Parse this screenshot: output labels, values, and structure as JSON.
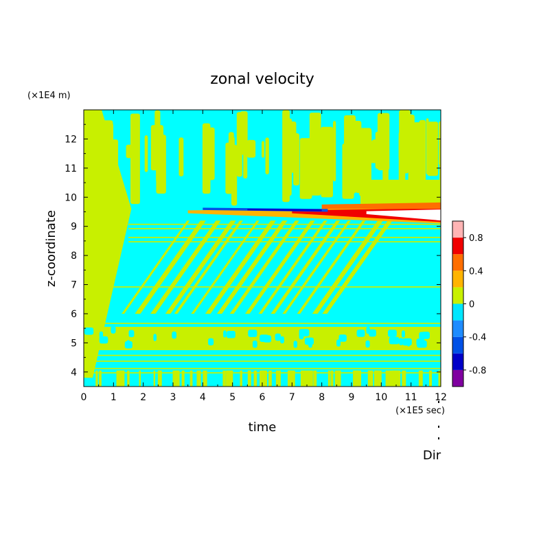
{
  "chart_data": {
    "type": "heatmap",
    "title": "zonal velocity",
    "xlabel": "time",
    "ylabel": "z-coordinate",
    "x_unit_label": "(×1E5 sec)",
    "y_unit_label": "(×1E4 m)",
    "footer_label": "Dir",
    "xlim": [
      0,
      12
    ],
    "ylim": [
      3.5,
      13
    ],
    "x_ticks": [
      0,
      1,
      2,
      3,
      4,
      5,
      6,
      7,
      8,
      9,
      10,
      11,
      12
    ],
    "y_ticks": [
      4,
      5,
      6,
      7,
      8,
      9,
      10,
      11,
      12
    ],
    "colorbar": {
      "levels": [
        -1.0,
        -0.8,
        -0.6,
        -0.4,
        -0.2,
        0,
        0.2,
        0.4,
        0.6,
        0.8,
        1.0
      ],
      "colors": [
        "#8000a0",
        "#0000c8",
        "#0050e6",
        "#1e8cff",
        "#00e6ff",
        "#c8f000",
        "#ffb400",
        "#ff6e00",
        "#f00000",
        "#ffb4b4"
      ],
      "tick_labels": [
        "0.8",
        "0.4",
        "0",
        "-0.4",
        "-0.8"
      ],
      "tick_values": [
        0.8,
        0.4,
        0,
        -0.4,
        -0.8
      ]
    },
    "background_color": "#00ffff",
    "features": [
      {
        "name": "strong shear jet",
        "x": [
          3.5,
          12
        ],
        "y": [
          9.2,
          9.6
        ]
      },
      {
        "name": "positive stripes near surface",
        "x": [
          0,
          12
        ],
        "y": [
          3.6,
          5.0
        ]
      },
      {
        "name": "lower band",
        "x": [
          0,
          12
        ],
        "y": [
          5.6,
          5.7
        ]
      }
    ]
  }
}
